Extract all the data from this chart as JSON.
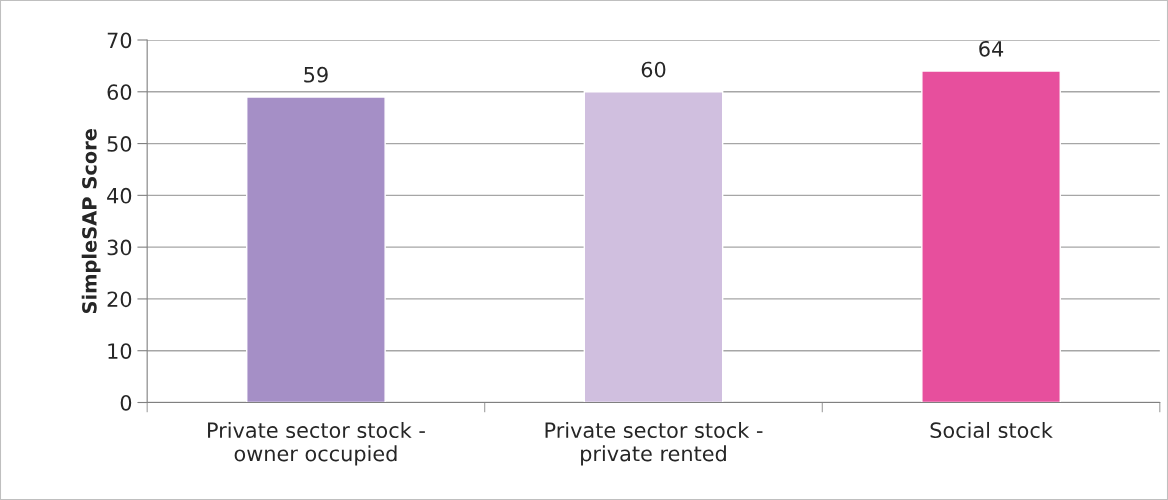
{
  "chart_data": {
    "type": "bar",
    "ylabel": "SimpleSAP Score",
    "categories": [
      "Private sector stock -\nowner occupied",
      "Private sector stock -\nprivate rented",
      "Social stock"
    ],
    "values": [
      59,
      60,
      64
    ],
    "colors": [
      "#a58fc6",
      "#d0bfdf",
      "#e74f9d"
    ],
    "ylim": [
      0,
      70
    ],
    "yticks": [
      0,
      10,
      20,
      30,
      40,
      50,
      60,
      70
    ],
    "grid": "y",
    "data_labels": true,
    "legend": false
  }
}
